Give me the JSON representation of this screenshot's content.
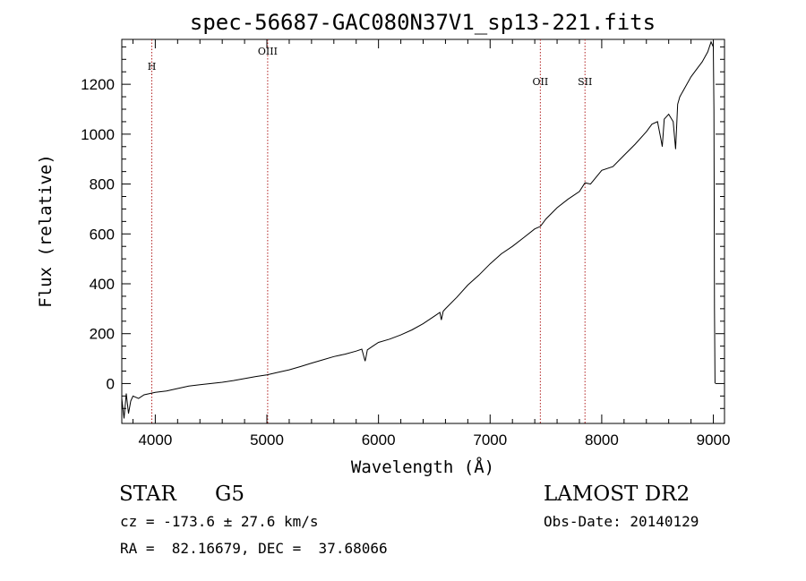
{
  "chart_data": {
    "type": "line",
    "title": "spec-56687-GAC080N37V1_sp13-221.fits",
    "xlabel": "Wavelength (Å)",
    "ylabel": "Flux (relative)",
    "xlim": [
      3700,
      9100
    ],
    "ylim": [
      -160,
      1380
    ],
    "x_ticks": [
      4000,
      5000,
      6000,
      7000,
      8000,
      9000
    ],
    "x_tick_labels": [
      "4000",
      "5000",
      "6000",
      "7000",
      "8000",
      "9000"
    ],
    "y_ticks": [
      0,
      200,
      400,
      600,
      800,
      1000,
      1200
    ],
    "y_tick_labels": [
      "0",
      "200",
      "400",
      "600",
      "800",
      "1000",
      "1200"
    ],
    "grid": false,
    "line_color": "#000000",
    "marker_color": "#b22222",
    "lines": [
      {
        "label": "H",
        "x": 3969
      },
      {
        "label": "OIII",
        "x": 5007
      },
      {
        "label": "OII",
        "x": 7450
      },
      {
        "label": "SII",
        "x": 7850
      }
    ],
    "series": [
      {
        "x": [
          3700,
          3720,
          3740,
          3760,
          3780,
          3800,
          3850,
          3900,
          3950,
          4000,
          4100,
          4200,
          4300,
          4400,
          4500,
          4600,
          4700,
          4800,
          4900,
          5000,
          5100,
          5200,
          5300,
          5400,
          5500,
          5600,
          5700,
          5800,
          5850,
          5880,
          5890,
          5900,
          5950,
          6000,
          6100,
          6200,
          6300,
          6400,
          6500,
          6550,
          6563,
          6580,
          6600,
          6700,
          6800,
          6900,
          7000,
          7100,
          7200,
          7300,
          7400,
          7450,
          7500,
          7600,
          7700,
          7800,
          7850,
          7900,
          8000,
          8100,
          8200,
          8300,
          8400,
          8450,
          8500,
          8530,
          8542,
          8560,
          8600,
          8640,
          8662,
          8680,
          8700,
          8750,
          8800,
          8850,
          8900,
          8950,
          8980,
          9000,
          9005,
          9010,
          9015
        ],
        "y": [
          -60,
          -140,
          -40,
          -120,
          -70,
          -50,
          -60,
          -45,
          -40,
          -35,
          -30,
          -20,
          -10,
          -5,
          0,
          5,
          12,
          20,
          28,
          35,
          45,
          55,
          68,
          82,
          95,
          108,
          118,
          130,
          138,
          90,
          110,
          135,
          150,
          165,
          178,
          195,
          215,
          240,
          270,
          285,
          255,
          290,
          300,
          345,
          395,
          435,
          480,
          520,
          550,
          585,
          620,
          630,
          660,
          705,
          740,
          770,
          805,
          800,
          855,
          870,
          915,
          960,
          1010,
          1040,
          1050,
          980,
          950,
          1060,
          1080,
          1050,
          940,
          1120,
          1150,
          1190,
          1230,
          1260,
          1290,
          1330,
          1370,
          1350,
          1100,
          300,
          0
        ]
      }
    ]
  },
  "info": {
    "object_class": "STAR",
    "subclass": "G5",
    "survey": "LAMOST DR2",
    "cz": "cz = -173.6 ± 27.6 km/s",
    "obs_date": "Obs-Date: 20140129",
    "radec": "RA =  82.16679, DEC =  37.68066"
  }
}
